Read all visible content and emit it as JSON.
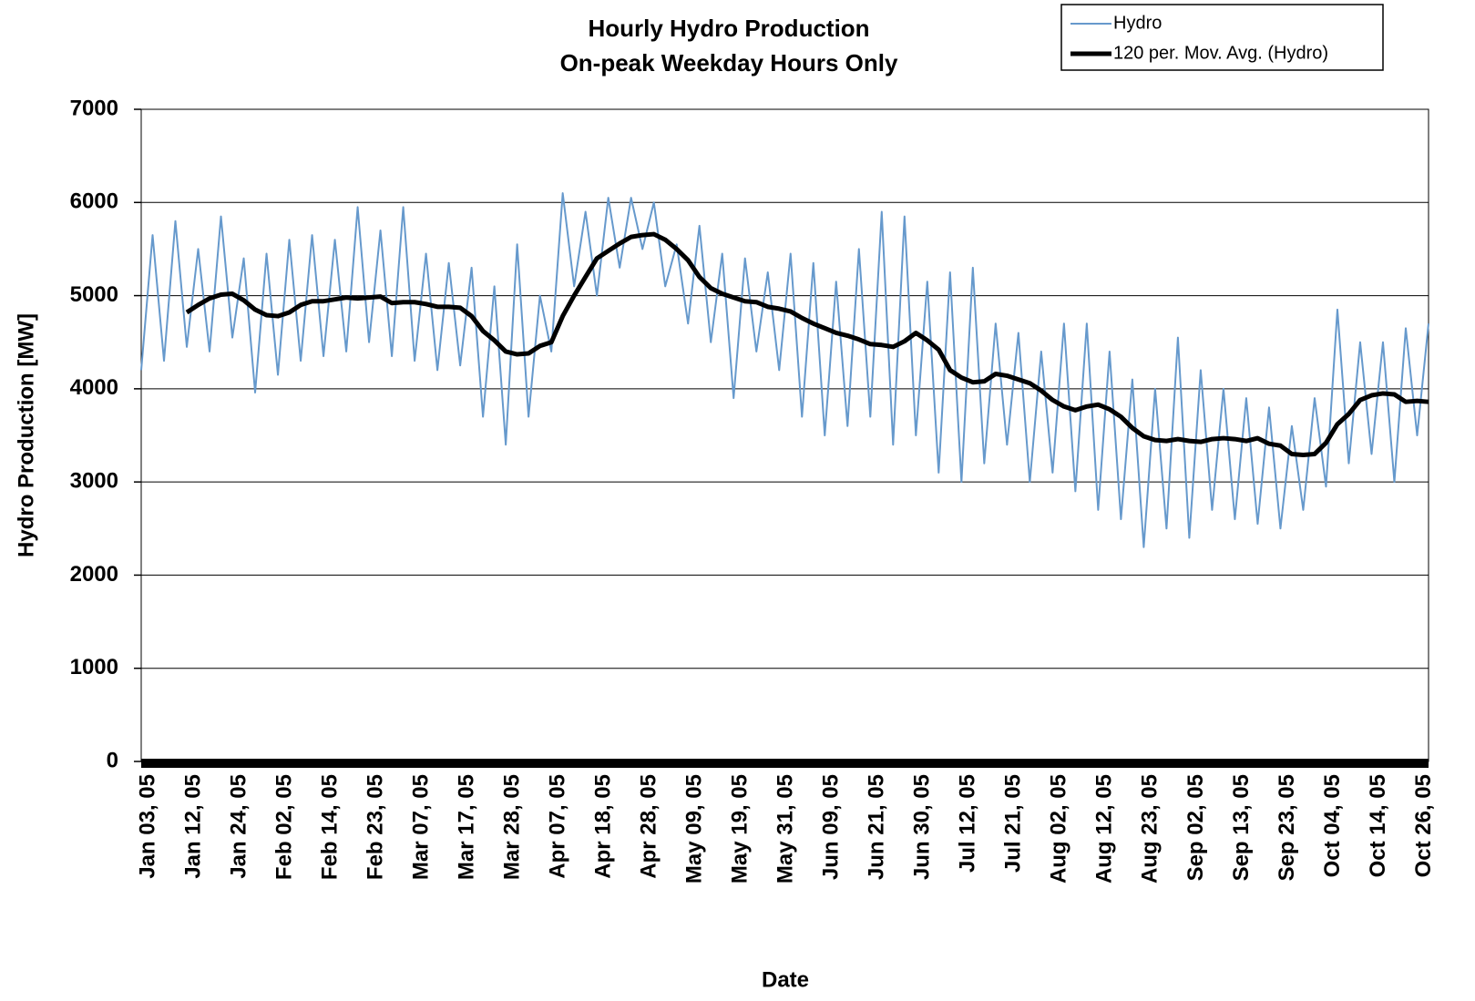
{
  "chart_data": {
    "type": "line",
    "title": "Hourly Hydro Production",
    "subtitle": "On-peak Weekday Hours Only",
    "x_label": "Date",
    "y_label": "Hydro Production [MW]",
    "categories": [
      "Jan 03, 05",
      null,
      null,
      null,
      "Jan 12, 05",
      null,
      null,
      null,
      "Jan 24, 05",
      null,
      null,
      null,
      "Feb 02, 05",
      null,
      null,
      null,
      "Feb 14, 05",
      null,
      null,
      null,
      "Feb 23, 05",
      null,
      null,
      null,
      "Mar 07, 05",
      null,
      null,
      null,
      "Mar 17, 05",
      null,
      null,
      null,
      "Mar 28, 05",
      null,
      null,
      null,
      "Apr 07, 05",
      null,
      null,
      null,
      "Apr 18, 05",
      null,
      null,
      null,
      "Apr 28, 05",
      null,
      null,
      null,
      "May 09, 05",
      null,
      null,
      null,
      "May 19, 05",
      null,
      null,
      null,
      "May 31, 05",
      null,
      null,
      null,
      "Jun 09, 05",
      null,
      null,
      null,
      "Jun 21, 05",
      null,
      null,
      null,
      "Jun 30, 05",
      null,
      null,
      null,
      "Jul 12, 05",
      null,
      null,
      null,
      "Jul 21, 05",
      null,
      null,
      null,
      "Aug 02, 05",
      null,
      null,
      null,
      "Aug 12, 05",
      null,
      null,
      null,
      "Aug 23, 05",
      null,
      null,
      null,
      "Sep 02, 05",
      null,
      null,
      null,
      "Sep 13, 05",
      null,
      null,
      null,
      "Sep 23, 05",
      null,
      null,
      null,
      "Oct 04, 05",
      null,
      null,
      null,
      "Oct 14, 05",
      null,
      null,
      null,
      "Oct 26, 05",
      null
    ],
    "series": [
      {
        "name": "Hydro",
        "color": "#6699cc",
        "width": 2,
        "values": [
          4200,
          5650,
          4300,
          5800,
          4450,
          5500,
          4400,
          5850,
          4550,
          5400,
          3960,
          5450,
          4150,
          5600,
          4300,
          5650,
          4350,
          5600,
          4400,
          5950,
          4500,
          5700,
          4350,
          5950,
          4300,
          5450,
          4200,
          5350,
          4250,
          5300,
          3700,
          5100,
          3400,
          5550,
          3700,
          5000,
          4400,
          6100,
          5100,
          5900,
          5000,
          6050,
          5300,
          6050,
          5500,
          6000,
          5100,
          5550,
          4700,
          5750,
          4500,
          5450,
          3900,
          5400,
          4400,
          5250,
          4200,
          5450,
          3700,
          5350,
          3500,
          5150,
          3600,
          5500,
          3700,
          5900,
          3400,
          5850,
          3500,
          5150,
          3100,
          5250,
          3000,
          5300,
          3200,
          4700,
          3400,
          4600,
          3000,
          4400,
          3100,
          4700,
          2900,
          4700,
          2700,
          4400,
          2600,
          4100,
          2300,
          4000,
          2500,
          4550,
          2400,
          4200,
          2700,
          4000,
          2600,
          3900,
          2550,
          3800,
          2500,
          3600,
          2700,
          3900,
          2950,
          4850,
          3200,
          4500,
          3300,
          4500,
          3000,
          4650,
          3500,
          4700
        ]
      },
      {
        "name": "120 per. Mov. Avg. (Hydro)",
        "color": "#000000",
        "width": 5,
        "values": [
          null,
          null,
          null,
          null,
          4820,
          4900,
          4970,
          5010,
          5020,
          4950,
          4850,
          4790,
          4780,
          4820,
          4900,
          4940,
          4940,
          4960,
          4980,
          4970,
          4980,
          4990,
          4920,
          4930,
          4930,
          4910,
          4880,
          4880,
          4870,
          4780,
          4620,
          4520,
          4400,
          4370,
          4380,
          4460,
          4500,
          4780,
          5000,
          5200,
          5400,
          5480,
          5560,
          5630,
          5650,
          5660,
          5600,
          5500,
          5380,
          5200,
          5080,
          5020,
          4980,
          4940,
          4930,
          4880,
          4860,
          4830,
          4760,
          4700,
          4650,
          4600,
          4570,
          4530,
          4480,
          4470,
          4450,
          4510,
          4600,
          4520,
          4420,
          4200,
          4120,
          4070,
          4080,
          4160,
          4140,
          4100,
          4060,
          3980,
          3880,
          3810,
          3770,
          3810,
          3830,
          3780,
          3700,
          3580,
          3490,
          3450,
          3440,
          3460,
          3440,
          3430,
          3460,
          3470,
          3460,
          3440,
          3470,
          3410,
          3390,
          3300,
          3290,
          3300,
          3420,
          3620,
          3730,
          3880,
          3930,
          3950,
          3940,
          3860,
          3870,
          3860
        ]
      }
    ],
    "ylim": [
      0,
      7000
    ],
    "yticks": [
      0,
      1000,
      2000,
      3000,
      4000,
      5000,
      6000,
      7000
    ],
    "grid": true,
    "legend": "top-right"
  }
}
